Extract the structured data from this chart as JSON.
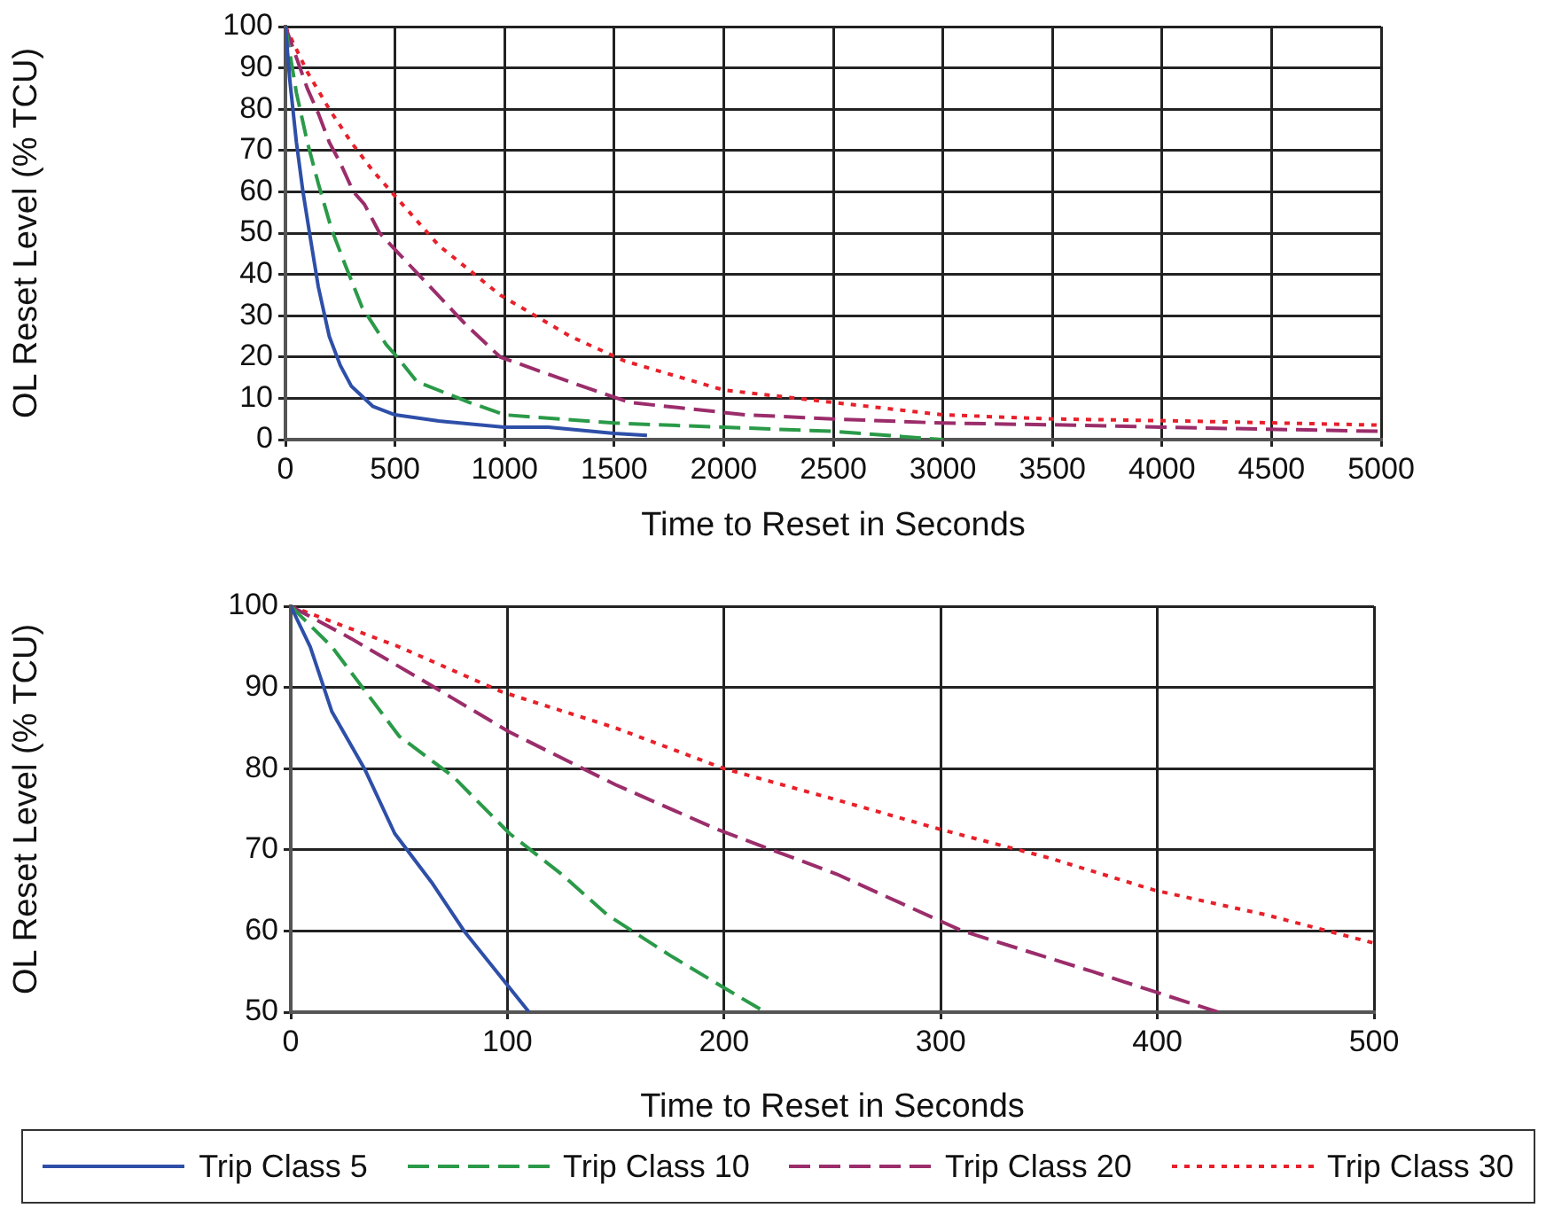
{
  "chart_data": [
    {
      "type": "line",
      "xlabel": "Time to Reset in Seconds",
      "ylabel": "OL Reset Level (% TCU)",
      "xlim": [
        0,
        5000
      ],
      "ylim": [
        0,
        100
      ],
      "xticks": [
        0,
        500,
        1000,
        1500,
        2000,
        2500,
        3000,
        3500,
        4000,
        4500,
        5000
      ],
      "yticks": [
        0,
        10,
        20,
        30,
        40,
        50,
        60,
        70,
        80,
        90,
        100
      ],
      "grid": true,
      "marker": "none",
      "series": [
        {
          "color": "#2e4fa8",
          "line_style": "solid",
          "x": [
            0,
            20,
            50,
            80,
            110,
            150,
            200,
            250,
            300,
            400,
            500,
            700,
            1000,
            1200,
            1500,
            1650
          ],
          "values": [
            100,
            87,
            72,
            60,
            50,
            37,
            25,
            18,
            13,
            8,
            6,
            4.5,
            3,
            3,
            1.5,
            1
          ]
        },
        {
          "color": "#2a9a48",
          "line_style": "dashed",
          "x": [
            0,
            50,
            100,
            150,
            210,
            275,
            350,
            460,
            510,
            600,
            840,
            1000,
            1500,
            2000,
            2500,
            3000
          ],
          "values": [
            100,
            84,
            72,
            62,
            51,
            42,
            32,
            23,
            20,
            14,
            9,
            6,
            4,
            3,
            2,
            0
          ]
        },
        {
          "color": "#9b2d6b",
          "line_style": "dashed",
          "x": [
            0,
            100,
            150,
            200,
            250,
            310,
            360,
            430,
            500,
            820,
            980,
            1350,
            1570,
            2100,
            2500,
            3000,
            3600,
            4000,
            5000
          ],
          "values": [
            100,
            85,
            79,
            72,
            67,
            60,
            57,
            50,
            46,
            28,
            20,
            13,
            9,
            6,
            5,
            4,
            3.5,
            3,
            2
          ]
        },
        {
          "color": "#e8202a",
          "line_style": "dotted",
          "x": [
            0,
            100,
            200,
            300,
            400,
            500,
            700,
            980,
            1300,
            1550,
            2000,
            2500,
            3000,
            3500,
            4100,
            5000
          ],
          "values": [
            100,
            89,
            80,
            72,
            65,
            59,
            47,
            35,
            25,
            19,
            12,
            9,
            6,
            5,
            4.5,
            3.5
          ]
        }
      ]
    },
    {
      "type": "line",
      "xlabel": "Time to Reset in Seconds",
      "ylabel": "OL Reset Level (% TCU)",
      "xlim": [
        0,
        500
      ],
      "ylim": [
        50,
        100
      ],
      "xticks": [
        0,
        100,
        200,
        300,
        400,
        500
      ],
      "yticks": [
        50,
        60,
        70,
        80,
        90,
        100
      ],
      "grid": true,
      "legend": "bottom",
      "marker": "none",
      "series": [
        {
          "name": "Trip Class 5",
          "color": "#2e4fa8",
          "line_style": "solid",
          "x": [
            0,
            9,
            19,
            34,
            48,
            65,
            80,
            95,
            110
          ],
          "values": [
            100,
            95,
            87,
            80,
            72,
            66,
            60,
            55,
            50
          ]
        },
        {
          "name": "Trip Class 10",
          "color": "#2a9a48",
          "line_style": "dashed",
          "x": [
            0,
            19,
            50,
            75,
            101,
            125,
            146,
            175,
            200,
            219
          ],
          "values": [
            100,
            95,
            84,
            79,
            72,
            67,
            62,
            57,
            53,
            50
          ]
        },
        {
          "name": "Trip Class 20",
          "color": "#9b2d6b",
          "line_style": "dashed",
          "x": [
            0,
            28,
            60,
            101,
            150,
            197,
            252,
            310,
            370,
            428
          ],
          "values": [
            100,
            96,
            91,
            84.5,
            78,
            72.5,
            67,
            60,
            55,
            50
          ]
        },
        {
          "name": "Trip Class 30",
          "color": "#e8202a",
          "line_style": "dotted",
          "x": [
            0,
            50,
            97,
            150,
            200,
            254,
            300,
            350,
            399,
            450,
            500
          ],
          "values": [
            100,
            95,
            89.5,
            85,
            80,
            76,
            72.5,
            69,
            65,
            62,
            58.5
          ]
        }
      ]
    }
  ]
}
